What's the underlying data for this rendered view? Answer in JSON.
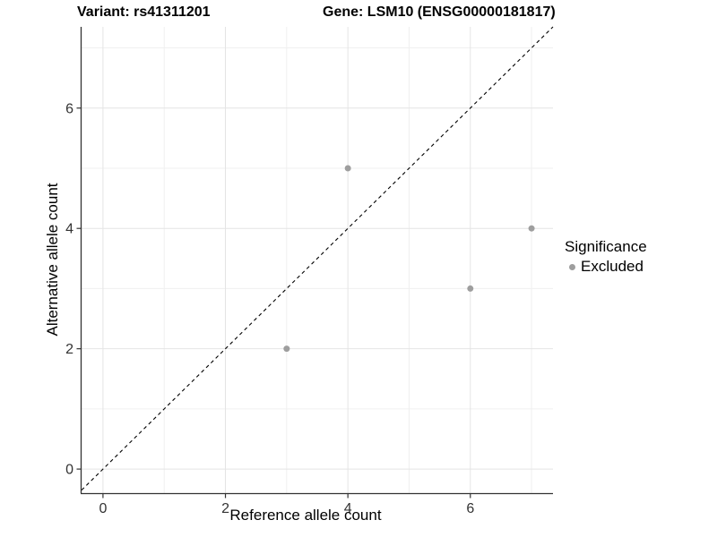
{
  "chart_data": {
    "type": "scatter",
    "title_left": "Variant: rs41311201",
    "title_right": "Gene: LSM10 (ENSG00000181817)",
    "xlabel": "Reference allele count",
    "ylabel": "Alternative allele count",
    "xlim": [
      -0.35,
      7.35
    ],
    "ylim": [
      -0.4,
      7.35
    ],
    "x_ticks": [
      0,
      2,
      4,
      6
    ],
    "y_ticks": [
      0,
      2,
      4,
      6
    ],
    "grid": {
      "major": [
        0,
        2,
        4,
        6
      ],
      "minor": [
        1,
        3,
        5,
        7
      ],
      "visible": true
    },
    "series": [
      {
        "name": "Excluded",
        "color": "#9e9e9e",
        "points": [
          [
            3,
            2
          ],
          [
            4,
            5
          ],
          [
            6,
            3
          ],
          [
            7,
            4
          ]
        ]
      }
    ],
    "reference_line": {
      "kind": "identity y=x",
      "style": "dashed",
      "color": "#000000"
    },
    "legend": {
      "title": "Significance",
      "position": "right",
      "items": [
        {
          "label": "Excluded",
          "color": "#9e9e9e"
        }
      ]
    }
  },
  "colors": {
    "background": "#ffffff",
    "point": "#9e9e9e",
    "grid_major": "#e4e4e4",
    "grid_minor": "#f0f0f0",
    "axis_line": "#333333",
    "tick_label": "#333333",
    "dashed_line": "#000000"
  }
}
